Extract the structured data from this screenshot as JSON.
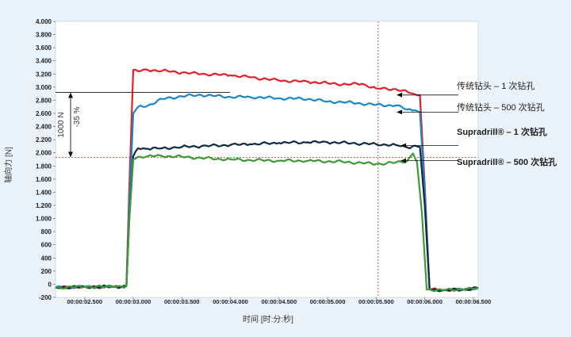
{
  "chart_data": {
    "type": "line",
    "xlabel": "时间 [时:分:秒]",
    "ylabel": "轴向力 [N]",
    "xlim": [
      2.2,
      6.55
    ],
    "ylim": [
      -200,
      4000
    ],
    "yticks": [
      -200,
      0,
      200,
      400,
      600,
      800,
      1000,
      1200,
      1400,
      1600,
      1800,
      2000,
      2200,
      2400,
      2600,
      2800,
      3000,
      3200,
      3400,
      3600,
      3800,
      4000
    ],
    "ytick_labels": [
      "-200",
      "0",
      "200",
      "400",
      "600",
      "800",
      "1.000",
      "1.200",
      "1.400",
      "1.600",
      "1.800",
      "2.000",
      "2.200",
      "2.400",
      "2.600",
      "2.800",
      "3.000",
      "3.200",
      "3.400",
      "3.600",
      "3.800",
      "4.000"
    ],
    "xticks": [
      2.5,
      3.0,
      3.5,
      4.0,
      4.5,
      5.0,
      5.5,
      6.0,
      6.5
    ],
    "xtick_labels": [
      "00:00:02.500",
      "00:00:03.000",
      "00:00:03.500",
      "00:00:04.000",
      "00:00:04.500",
      "00:00:05.000",
      "00:00:05.500",
      "00:00:06.000",
      "00:00:06.500"
    ],
    "legend_placement": "right",
    "series": [
      {
        "name": "传统钻头 – 1 次钻孔",
        "color": "#e3202a",
        "x": [
          2.2,
          2.5,
          2.8,
          2.93,
          2.96,
          3.0,
          3.05,
          3.15,
          3.3,
          3.5,
          3.7,
          4.0,
          4.2,
          4.5,
          4.8,
          5.0,
          5.2,
          5.35,
          5.5,
          5.7,
          5.85,
          5.9,
          5.95,
          6.0,
          6.05,
          6.2,
          6.4,
          6.55
        ],
        "y": [
          -50,
          -40,
          -40,
          -30,
          1500,
          3260,
          3240,
          3260,
          3250,
          3220,
          3200,
          3180,
          3150,
          3100,
          3080,
          3060,
          3040,
          3050,
          2980,
          2970,
          2910,
          2890,
          2880,
          1500,
          -80,
          -90,
          -80,
          -60
        ]
      },
      {
        "name": "传统钻头 – 500 次钻孔",
        "color": "#1a87c8",
        "x": [
          2.2,
          2.5,
          2.8,
          2.93,
          2.96,
          3.0,
          3.05,
          3.15,
          3.3,
          3.5,
          3.7,
          4.0,
          4.2,
          4.5,
          4.8,
          5.0,
          5.2,
          5.5,
          5.7,
          5.82,
          5.9,
          5.95,
          6.0,
          6.05,
          6.2,
          6.4,
          6.55
        ],
        "y": [
          -50,
          -40,
          -40,
          -30,
          1200,
          2600,
          2700,
          2720,
          2820,
          2860,
          2880,
          2850,
          2850,
          2830,
          2820,
          2780,
          2770,
          2730,
          2720,
          2660,
          2650,
          2620,
          1400,
          -80,
          -90,
          -80,
          -60
        ]
      },
      {
        "name": "Supradrill® – 1 次钻孔",
        "color": "#0f2a44",
        "x": [
          2.2,
          2.5,
          2.8,
          2.93,
          2.96,
          3.0,
          3.05,
          3.15,
          3.3,
          3.5,
          3.7,
          4.0,
          4.2,
          4.5,
          4.8,
          5.0,
          5.2,
          5.5,
          5.7,
          5.82,
          5.9,
          5.95,
          6.0,
          6.05,
          6.2,
          6.4,
          6.55
        ],
        "y": [
          -50,
          -40,
          -40,
          -30,
          1000,
          1950,
          2070,
          2060,
          2070,
          2090,
          2100,
          2120,
          2130,
          2150,
          2160,
          2160,
          2150,
          2130,
          2120,
          2080,
          2110,
          2090,
          1200,
          -80,
          -90,
          -80,
          -60
        ]
      },
      {
        "name": "Supradrill® – 500 次钻孔",
        "color": "#3e9a35",
        "x": [
          2.2,
          2.5,
          2.8,
          2.93,
          2.96,
          3.0,
          3.05,
          3.15,
          3.3,
          3.5,
          3.7,
          4.0,
          4.2,
          4.5,
          4.8,
          5.0,
          5.2,
          5.5,
          5.7,
          5.82,
          5.88,
          5.92,
          5.97,
          6.02,
          6.2,
          6.4,
          6.55
        ],
        "y": [
          -50,
          -40,
          -40,
          -30,
          1000,
          1900,
          1940,
          1950,
          1950,
          1940,
          1920,
          1900,
          1890,
          1880,
          1880,
          1870,
          1860,
          1830,
          1850,
          1880,
          1990,
          1860,
          1100,
          -80,
          -90,
          -80,
          -60
        ]
      }
    ],
    "reference_lines": {
      "vertical_x": 5.52,
      "horizontal_y": 1930,
      "top_y": 2920
    },
    "annotations": {
      "difference": "1000 N",
      "percent": "-35 %"
    }
  }
}
